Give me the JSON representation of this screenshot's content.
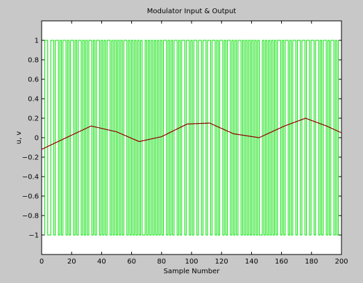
{
  "chart_data": {
    "type": "line",
    "title": "Modulator Input & Output",
    "xlabel": "Sample Number",
    "ylabel": "u, v",
    "xlim": [
      0,
      200
    ],
    "ylim": [
      -1.2,
      1.2
    ],
    "grid": false,
    "xticks": [
      0,
      20,
      40,
      60,
      80,
      100,
      120,
      140,
      160,
      180,
      200
    ],
    "yticks": [
      -1,
      -0.8,
      -0.6,
      -0.4,
      -0.2,
      0,
      0.2,
      0.4,
      0.6,
      0.8,
      1
    ],
    "xtick_labels": [
      "0",
      "20",
      "40",
      "60",
      "80",
      "100",
      "120",
      "140",
      "160",
      "180",
      "200"
    ],
    "ytick_labels": [
      "−1",
      "−0.8",
      "−0.6",
      "−0.4",
      "−0.2",
      "0",
      "0.2",
      "0.4",
      "0.6",
      "0.8",
      "1"
    ],
    "series": [
      {
        "role": "input u",
        "color": "#c80000",
        "marker": "dot",
        "x": [
          0,
          15,
          33,
          50,
          65,
          80,
          97,
          112,
          128,
          145,
          162,
          176,
          190,
          200
        ],
        "y": [
          -0.12,
          -0.01,
          0.12,
          0.06,
          -0.04,
          0.01,
          0.14,
          0.15,
          0.04,
          0.0,
          0.12,
          0.2,
          0.12,
          0.05
        ]
      },
      {
        "role": "output v",
        "color": "#00e000",
        "values": [
          -1,
          -1,
          1,
          1,
          -1,
          -1,
          1,
          1,
          -1,
          1,
          1,
          -1,
          1,
          -1,
          1,
          1,
          -1,
          1,
          -1,
          1,
          1,
          -1,
          1,
          -1,
          1,
          1,
          -1,
          1,
          -1,
          1,
          -1,
          1,
          1,
          -1,
          1,
          -1,
          1,
          1,
          -1,
          1,
          -1,
          1,
          -1,
          1,
          1,
          -1,
          1,
          -1,
          1,
          -1,
          1,
          -1,
          1,
          -1,
          1,
          1,
          -1,
          1,
          -1,
          1,
          -1,
          1,
          -1,
          1,
          -1,
          1,
          -1,
          -1,
          1,
          -1,
          1,
          -1,
          1,
          -1,
          1,
          -1,
          1,
          -1,
          1,
          -1,
          1,
          1,
          -1,
          1,
          -1,
          1,
          -1,
          1,
          1,
          -1,
          1,
          -1,
          1,
          1,
          -1,
          1,
          1,
          -1,
          1,
          -1,
          1,
          1,
          -1,
          1,
          1,
          -1,
          1,
          1,
          -1,
          1,
          1,
          -1,
          1,
          1,
          -1,
          1,
          -1,
          1,
          1,
          -1,
          1,
          -1,
          1,
          1,
          -1,
          1,
          -1,
          1,
          -1,
          1,
          1,
          -1,
          1,
          -1,
          1,
          -1,
          1,
          -1,
          1,
          -1,
          1,
          -1,
          1,
          -1,
          -1,
          1,
          -1,
          1,
          -1,
          1,
          -1,
          1,
          -1,
          1,
          -1,
          1,
          1,
          -1,
          1,
          -1,
          1,
          1,
          -1,
          1,
          -1,
          1,
          1,
          -1,
          1,
          1,
          -1,
          1,
          1,
          -1,
          1,
          1,
          -1,
          1,
          1,
          -1,
          1,
          1,
          -1,
          1,
          -1,
          1,
          1,
          -1,
          1,
          -1,
          1,
          1,
          -1,
          1,
          -1,
          1,
          1
        ]
      }
    ]
  }
}
